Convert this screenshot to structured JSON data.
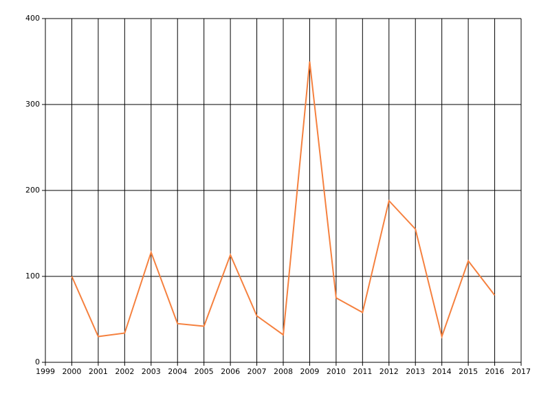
{
  "chart_data": {
    "type": "line",
    "x": [
      2000,
      2001,
      2002,
      2003,
      2004,
      2005,
      2006,
      2007,
      2008,
      2009,
      2010,
      2011,
      2012,
      2013,
      2014,
      2015,
      2016
    ],
    "series": [
      {
        "color": "#f5803e",
        "values": [
          100,
          30,
          34,
          128,
          45,
          42,
          125,
          54,
          32,
          350,
          75,
          58,
          188,
          155,
          30,
          118,
          78
        ]
      }
    ],
    "xlim": [
      1999,
      2017
    ],
    "xticks": [
      1999,
      2000,
      2001,
      2002,
      2003,
      2004,
      2005,
      2006,
      2007,
      2008,
      2009,
      2010,
      2011,
      2012,
      2013,
      2014,
      2015,
      2016,
      2017
    ],
    "ylim": [
      0,
      400
    ],
    "yticks": [
      0,
      100,
      200,
      300,
      400
    ],
    "grid": true
  }
}
